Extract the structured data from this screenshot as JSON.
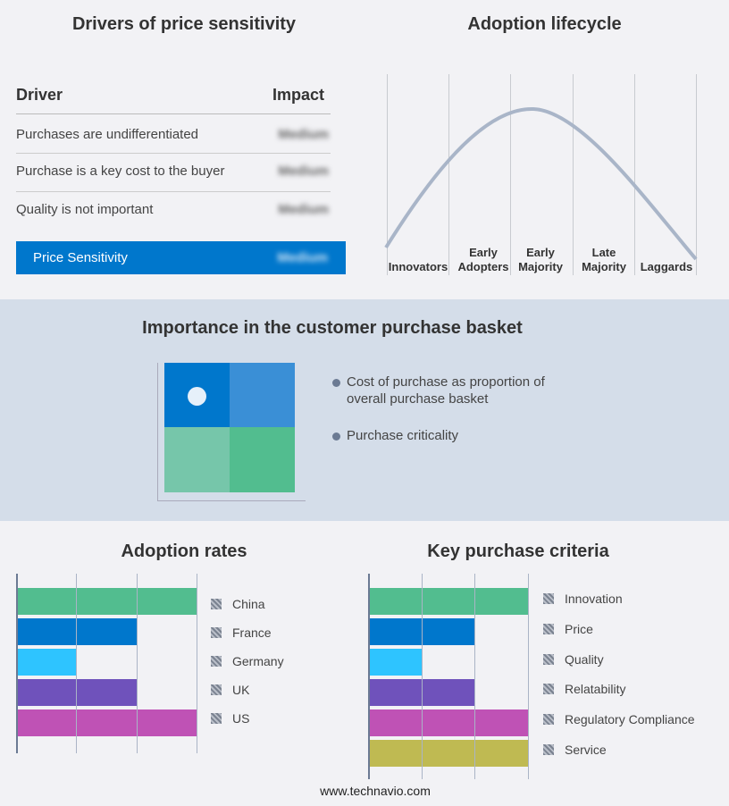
{
  "drivers": {
    "title": "Drivers of price sensitivity",
    "col_driver": "Driver",
    "col_impact": "Impact",
    "rows": [
      {
        "driver": "Purchases are undifferentiated",
        "impact": "Medium"
      },
      {
        "driver": "Purchase is a key cost to the buyer",
        "impact": "Medium"
      },
      {
        "driver": "Quality is not important",
        "impact": "Medium"
      }
    ],
    "summary": {
      "label": "Price Sensitivity",
      "impact": "Medium",
      "color": "#0077cc"
    }
  },
  "lifecycle": {
    "title": "Adoption lifecycle",
    "stages": [
      "Innovators",
      "Early Adopters",
      "Early Majority",
      "Late Majority",
      "Laggards"
    ],
    "curve_color": "#a9b5c8"
  },
  "basket": {
    "title": "Importance in the customer purchase basket",
    "legend": [
      "Cost of purchase as proportion of overall purchase basket",
      "Purchase criticality"
    ],
    "colors": [
      "#0077cc",
      "#3a8fd6",
      "#76c6aa",
      "#52bd8f"
    ]
  },
  "chart_data": [
    {
      "type": "bar",
      "orientation": "horizontal",
      "title": "Adoption rates",
      "categories": [
        "China",
        "France",
        "Germany",
        "UK",
        "US"
      ],
      "values": [
        3,
        2,
        1,
        2,
        3
      ],
      "xlim": [
        0,
        3
      ],
      "grid": true,
      "legend": "right",
      "colors": [
        "#52bd8f",
        "#0077cc",
        "#2ec4ff",
        "#6f52bb",
        "#bf52b5"
      ]
    },
    {
      "type": "bar",
      "orientation": "horizontal",
      "title": "Key purchase criteria",
      "categories": [
        "Innovation",
        "Price",
        "Quality",
        "Relatability",
        "Regulatory Compliance",
        "Service"
      ],
      "values": [
        3,
        2,
        1,
        2,
        3,
        3
      ],
      "xlim": [
        0,
        3
      ],
      "grid": true,
      "legend": "right",
      "colors": [
        "#52bd8f",
        "#0077cc",
        "#2ec4ff",
        "#6f52bb",
        "#bf52b5",
        "#bfba52"
      ]
    }
  ],
  "footer": "www.technavio.com"
}
